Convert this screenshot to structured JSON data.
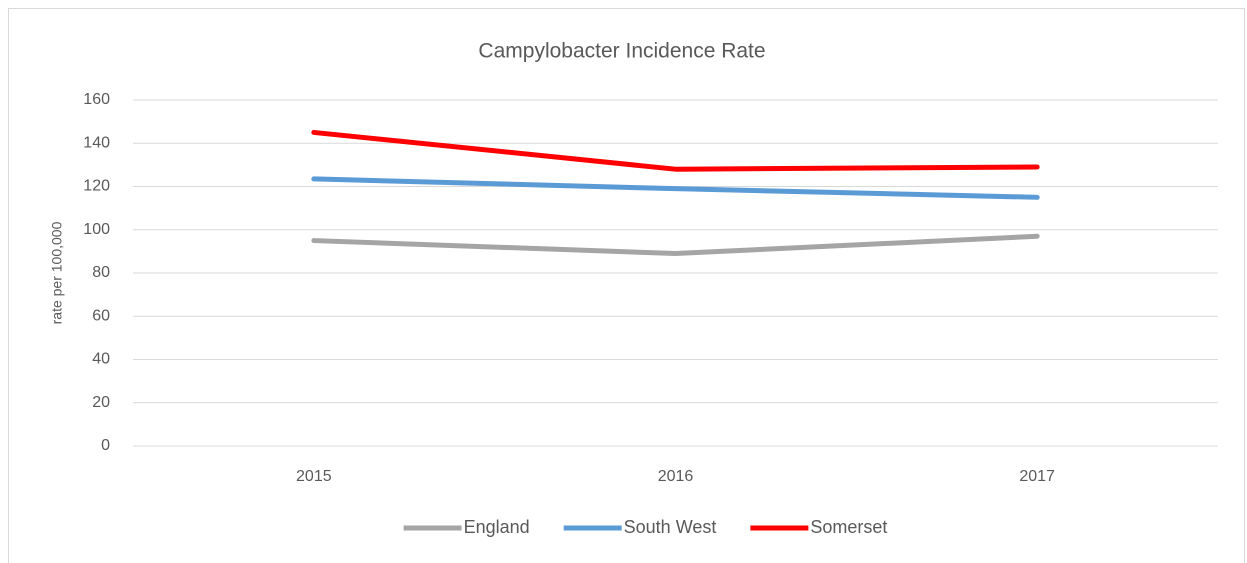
{
  "chart_data": {
    "type": "line",
    "title": "Campylobacter Incidence Rate",
    "y_label": "rate per 100,000",
    "categories": [
      "2015",
      "2016",
      "2017"
    ],
    "series": [
      {
        "name": "England",
        "color": "#a5a5a5",
        "values": [
          95,
          89,
          97
        ]
      },
      {
        "name": "South West",
        "color": "#5b9bd5",
        "values": [
          123.5,
          119,
          115
        ]
      },
      {
        "name": "Somerset",
        "color": "#ff0000",
        "values": [
          145,
          128,
          129
        ]
      }
    ],
    "ylim": [
      0,
      160
    ],
    "yticks": [
      0,
      20,
      40,
      60,
      80,
      100,
      120,
      140,
      160
    ],
    "grid": true,
    "legend": "bottom"
  }
}
